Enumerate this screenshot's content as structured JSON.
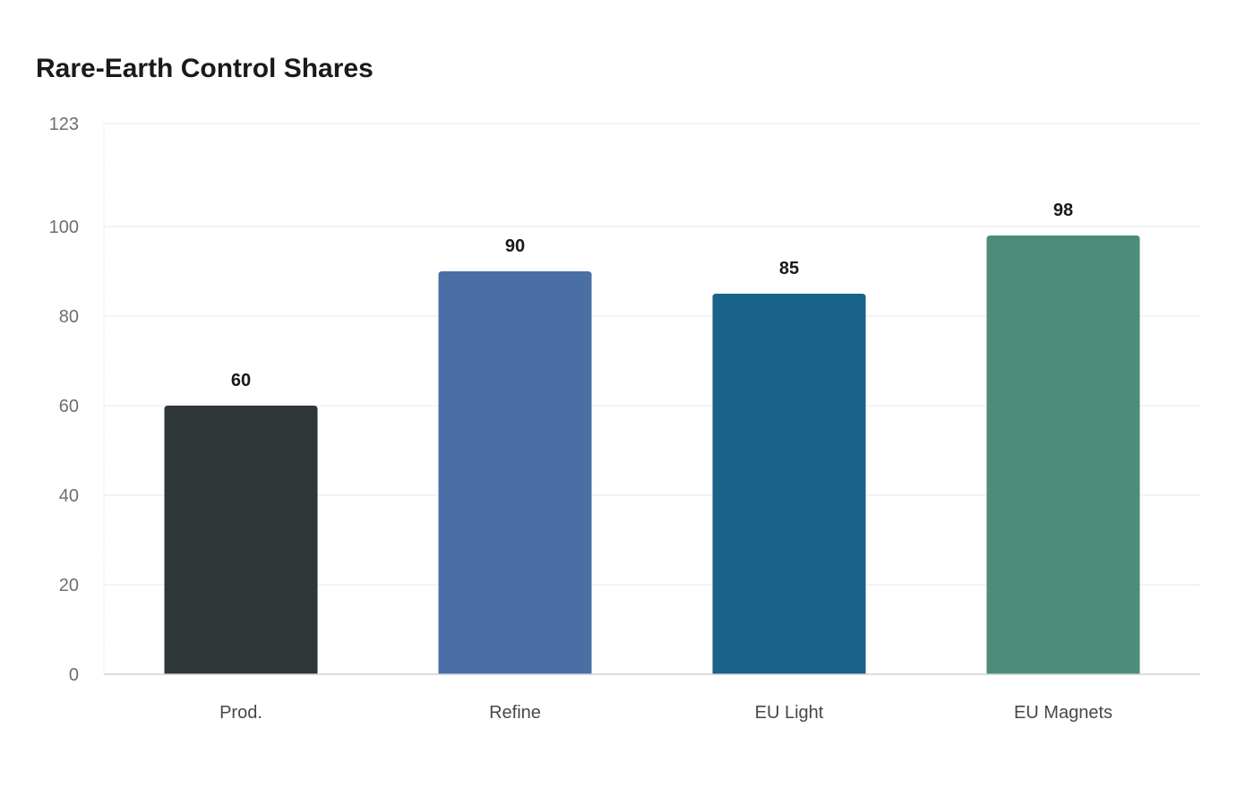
{
  "chart_data": {
    "type": "bar",
    "title": "Rare-Earth Control Shares",
    "xlabel": "",
    "ylabel": "",
    "categories": [
      "Prod.",
      "Refine",
      "EU Light",
      "EU Magnets"
    ],
    "values": [
      60,
      90,
      85,
      98
    ],
    "value_labels": [
      "60",
      "90",
      "85",
      "98"
    ],
    "colors": [
      "#2e3638",
      "#4a6fa5",
      "#196288",
      "#4d8c7a"
    ],
    "ylim": [
      0,
      123
    ],
    "yticks": [
      0,
      20,
      40,
      60,
      80,
      100,
      123
    ],
    "grid": true,
    "legend": "none"
  }
}
